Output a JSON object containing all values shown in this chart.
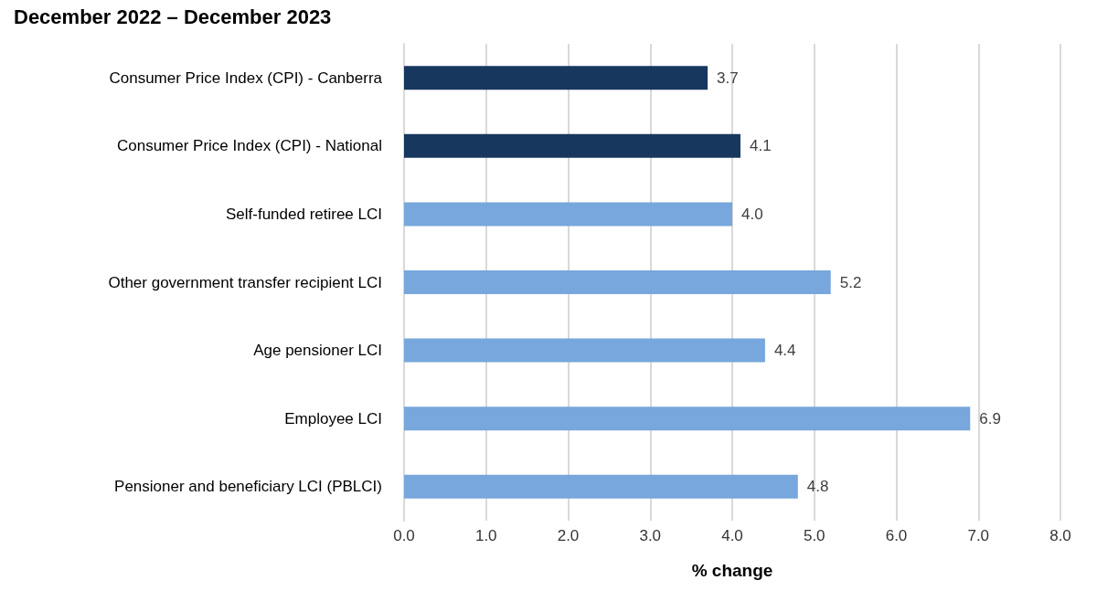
{
  "chart_data": {
    "type": "bar",
    "orientation": "horizontal",
    "title": "December 2022 – December 2023",
    "xlabel": "% change",
    "categories": [
      "Consumer Price Index (CPI) - Canberra",
      "Consumer Price Index (CPI) - National",
      "Self-funded retiree LCI",
      "Other government transfer recipient LCI",
      "Age pensioner LCI",
      "Employee LCI",
      "Pensioner and beneficiary LCI (PBLCI)"
    ],
    "values": [
      3.7,
      4.1,
      4.0,
      5.2,
      4.4,
      6.9,
      4.8
    ],
    "colors": [
      "#17375e",
      "#17375e",
      "#77a7dc",
      "#77a7dc",
      "#77a7dc",
      "#77a7dc",
      "#77a7dc"
    ],
    "value_labels": [
      "3.7",
      "4.1",
      "4.0",
      "5.2",
      "4.4",
      "6.9",
      "4.8"
    ],
    "xlim": [
      0,
      8
    ],
    "xticks": [
      {
        "value": 0,
        "label": "0.0"
      },
      {
        "value": 1,
        "label": "1.0"
      },
      {
        "value": 2,
        "label": "2.0"
      },
      {
        "value": 3,
        "label": "3.0"
      },
      {
        "value": 4,
        "label": "4.0"
      },
      {
        "value": 5,
        "label": "5.0"
      },
      {
        "value": 6,
        "label": "6.0"
      },
      {
        "value": 7,
        "label": "7.0"
      },
      {
        "value": 8,
        "label": "8.0"
      }
    ],
    "grid": "x"
  }
}
